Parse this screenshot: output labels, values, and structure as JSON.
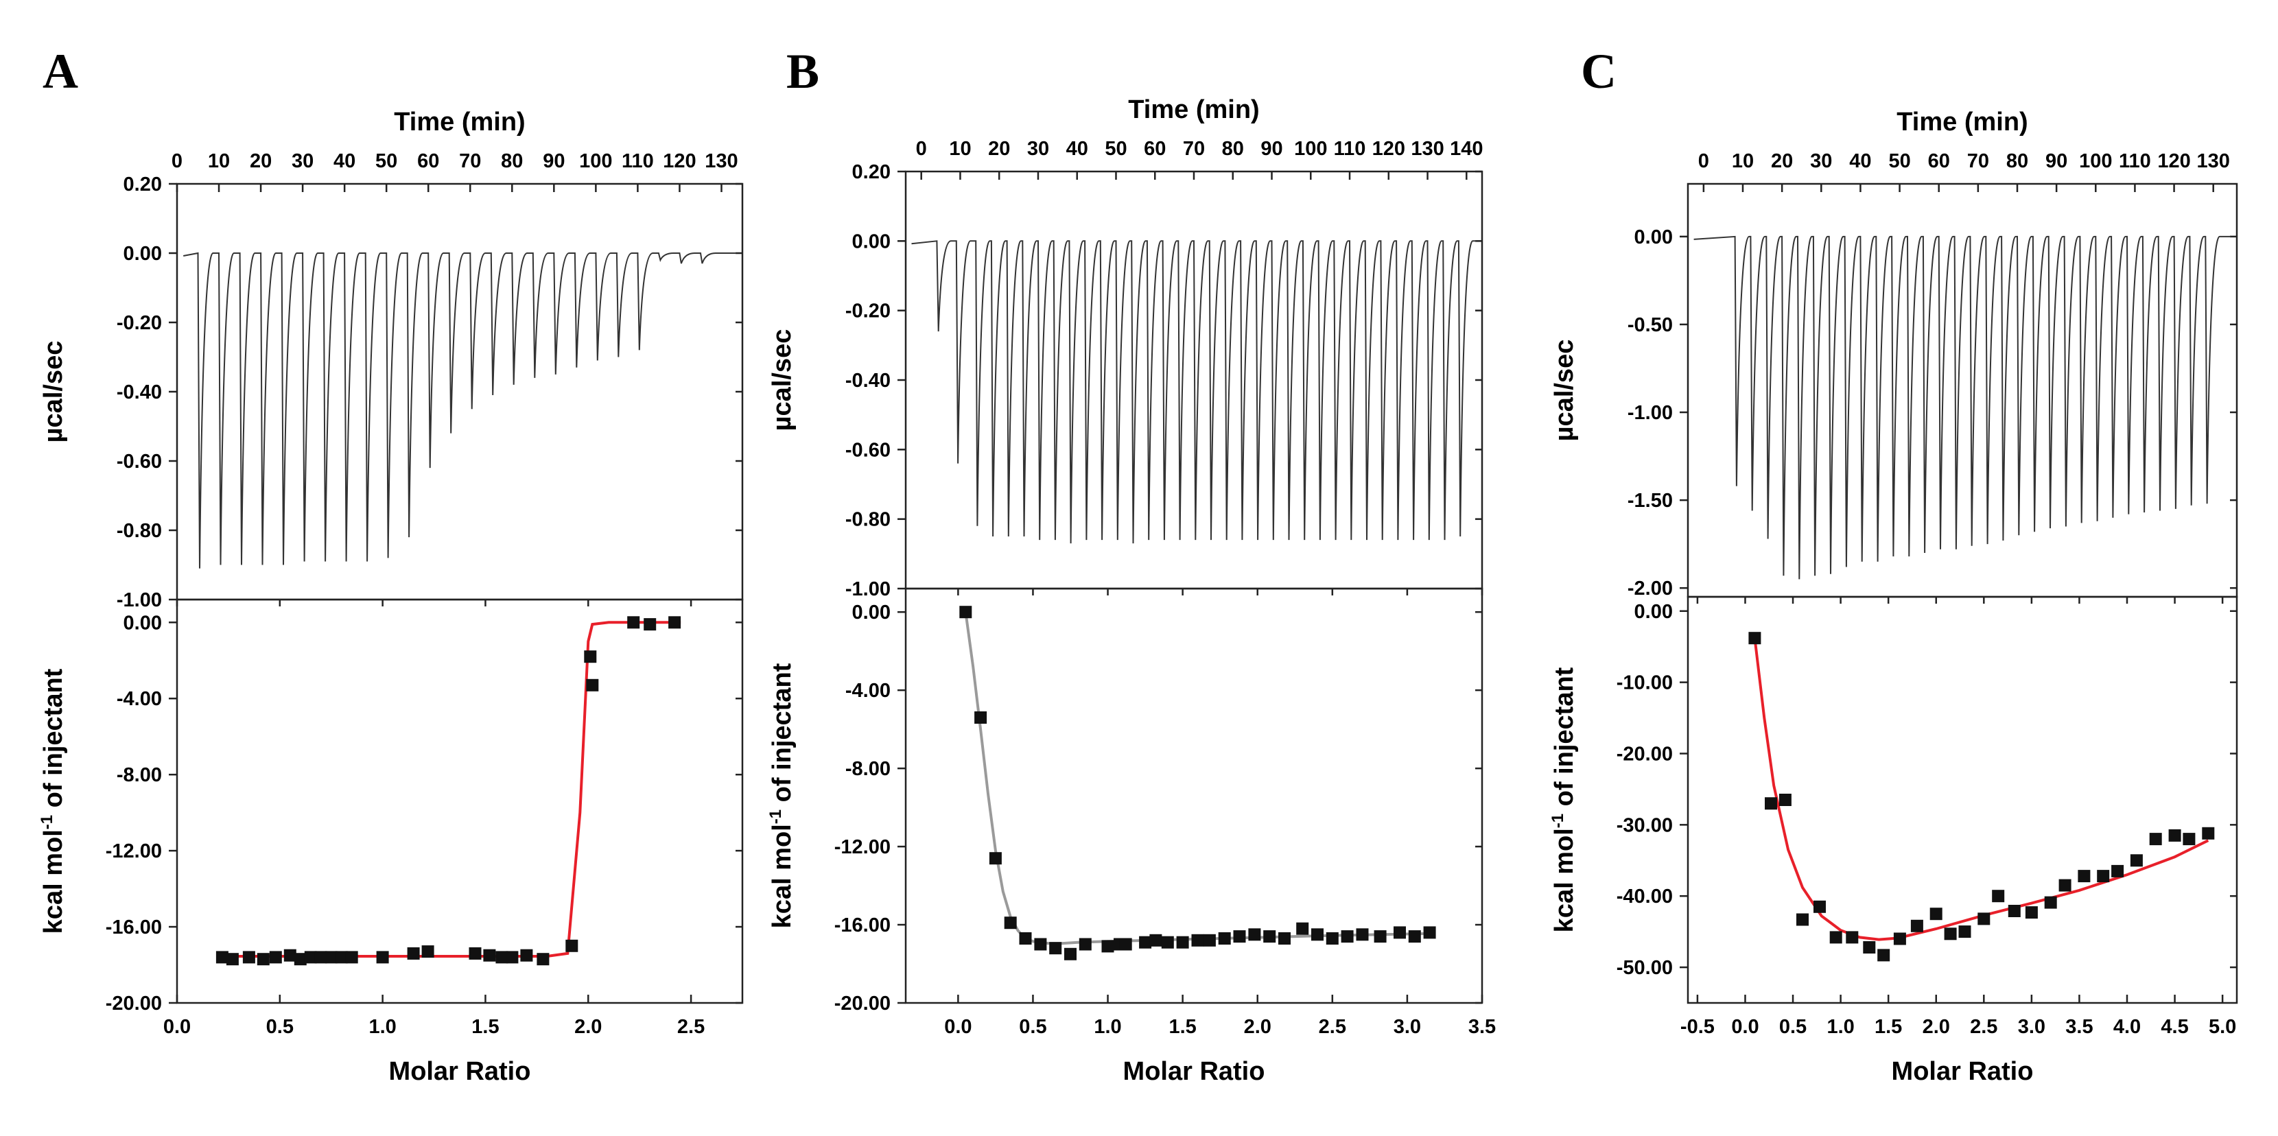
{
  "colors": {
    "fit_red": "#e8202a",
    "fit_gray": "#9a9a9a",
    "marker": "#111111",
    "axis": "#222222",
    "trace": "#333333"
  },
  "chart_data": [
    {
      "type": "scatter",
      "panel": "A",
      "top_plot": {
        "title": "Time (min)",
        "ylabel": "µcal/sec",
        "xlim": [
          0,
          135
        ],
        "ylim": [
          -1.0,
          0.2
        ],
        "x_tick_labels": [
          "0",
          "10",
          "20",
          "30",
          "40",
          "50",
          "60",
          "70",
          "80",
          "90",
          "100",
          "110",
          "120",
          "130"
        ],
        "y_tick_labels": [
          "0.20",
          "0.00",
          "-0.20",
          "-0.40",
          "-0.60",
          "-0.80",
          "-1.00"
        ],
        "injection_times": [
          5,
          10,
          15,
          20,
          25,
          30,
          35,
          40,
          45,
          50,
          55,
          60,
          65,
          70,
          75,
          80,
          85,
          90,
          95,
          100,
          105,
          110,
          115,
          120,
          125
        ],
        "peak_depths": [
          -0.91,
          -0.9,
          -0.9,
          -0.9,
          -0.9,
          -0.89,
          -0.89,
          -0.89,
          -0.89,
          -0.88,
          -0.82,
          -0.62,
          -0.52,
          -0.45,
          -0.41,
          -0.38,
          -0.36,
          -0.35,
          -0.33,
          -0.31,
          -0.3,
          -0.28,
          -0.02,
          -0.03,
          -0.03
        ]
      },
      "bottom_plot": {
        "xlabel": "Molar Ratio",
        "ylabel": "kcal mol⁻¹ of injectant",
        "ylabel_parts": [
          "kcal mol",
          "-1",
          " of injectant"
        ],
        "xlim": [
          0,
          2.75
        ],
        "ylim": [
          -20,
          1.2
        ],
        "x_tick_labels": [
          "0.0",
          "0.5",
          "1.0",
          "1.5",
          "2.0",
          "2.5"
        ],
        "y_tick_labels": [
          "0.00",
          "-4.00",
          "-8.00",
          "-12.00",
          "-16.00",
          "-20.00"
        ],
        "x": [
          0.22,
          0.27,
          0.35,
          0.42,
          0.48,
          0.55,
          0.6,
          0.65,
          0.7,
          0.75,
          0.8,
          0.85,
          1.0,
          1.15,
          1.22,
          1.45,
          1.52,
          1.58,
          1.63,
          1.7,
          1.78,
          1.92,
          2.01,
          2.02,
          2.22,
          2.3,
          2.42
        ],
        "y": [
          -17.6,
          -17.7,
          -17.6,
          -17.7,
          -17.6,
          -17.5,
          -17.7,
          -17.6,
          -17.6,
          -17.6,
          -17.6,
          -17.6,
          -17.6,
          -17.4,
          -17.3,
          -17.4,
          -17.5,
          -17.6,
          -17.6,
          -17.5,
          -17.7,
          -17.0,
          -1.8,
          -3.3,
          0.0,
          -0.1,
          0.0
        ],
        "fit_x": [
          0.2,
          0.5,
          1.0,
          1.5,
          1.8,
          1.9,
          1.96,
          2.0,
          2.02,
          2.1,
          2.2,
          2.45
        ],
        "fit_y": [
          -17.55,
          -17.55,
          -17.55,
          -17.55,
          -17.55,
          -17.4,
          -10.0,
          -1.0,
          -0.1,
          0.0,
          0.0,
          0.0
        ],
        "fit_color": "#e8202a"
      }
    },
    {
      "type": "scatter",
      "panel": "B",
      "top_plot": {
        "title": "Time (min)",
        "ylabel": "µcal/sec",
        "xlim": [
          -4,
          144
        ],
        "ylim": [
          -1.0,
          0.2
        ],
        "x_tick_labels": [
          "0",
          "10",
          "20",
          "30",
          "40",
          "50",
          "60",
          "70",
          "80",
          "90",
          "100",
          "110",
          "120",
          "130",
          "140"
        ],
        "y_tick_labels": [
          "0.20",
          "0.00",
          "-0.20",
          "-0.40",
          "-0.60",
          "-0.80",
          "-1.00"
        ],
        "injection_times": [
          4,
          9,
          14,
          18,
          22,
          26,
          30,
          34,
          38,
          42,
          46,
          50,
          54,
          58,
          62,
          66,
          70,
          74,
          78,
          82,
          86,
          90,
          94,
          98,
          102,
          106,
          110,
          114,
          118,
          122,
          126,
          130,
          134,
          138
        ],
        "peak_depths": [
          -0.26,
          -0.64,
          -0.82,
          -0.85,
          -0.85,
          -0.85,
          -0.86,
          -0.86,
          -0.87,
          -0.86,
          -0.86,
          -0.86,
          -0.87,
          -0.86,
          -0.86,
          -0.86,
          -0.86,
          -0.86,
          -0.86,
          -0.86,
          -0.86,
          -0.86,
          -0.86,
          -0.86,
          -0.86,
          -0.86,
          -0.86,
          -0.86,
          -0.86,
          -0.86,
          -0.86,
          -0.86,
          -0.86,
          -0.85
        ]
      },
      "bottom_plot": {
        "xlabel": "Molar Ratio",
        "ylabel": "kcal mol⁻¹ of injectant",
        "ylabel_parts": [
          "kcal mol",
          "-1",
          " of injectant"
        ],
        "xlim": [
          -0.35,
          3.5
        ],
        "ylim": [
          -20,
          1.2
        ],
        "x_tick_labels": [
          "0.0",
          "0.5",
          "1.0",
          "1.5",
          "2.0",
          "2.5",
          "3.0",
          "3.5"
        ],
        "y_tick_labels": [
          "0.00",
          "-4.00",
          "-8.00",
          "-12.00",
          "-16.00",
          "-20.00"
        ],
        "x": [
          0.05,
          0.15,
          0.25,
          0.35,
          0.45,
          0.55,
          0.65,
          0.75,
          0.85,
          1.0,
          1.08,
          1.12,
          1.25,
          1.32,
          1.4,
          1.5,
          1.6,
          1.68,
          1.78,
          1.88,
          1.98,
          2.08,
          2.18,
          2.3,
          2.4,
          2.5,
          2.6,
          2.7,
          2.82,
          2.95,
          3.05,
          3.15
        ],
        "y": [
          0.0,
          -5.4,
          -12.6,
          -15.9,
          -16.7,
          -17.0,
          -17.2,
          -17.5,
          -17.0,
          -17.1,
          -17.0,
          -17.0,
          -16.9,
          -16.8,
          -16.9,
          -16.9,
          -16.8,
          -16.8,
          -16.7,
          -16.6,
          -16.5,
          -16.6,
          -16.7,
          -16.2,
          -16.5,
          -16.7,
          -16.6,
          -16.5,
          -16.6,
          -16.4,
          -16.6,
          -16.4
        ],
        "fit_x": [
          0.05,
          0.1,
          0.15,
          0.2,
          0.25,
          0.3,
          0.35,
          0.4,
          0.45,
          0.5,
          0.6,
          0.7,
          0.8,
          1.0,
          1.5,
          2.0,
          2.5,
          3.15
        ],
        "fit_y": [
          0.0,
          -2.8,
          -6.0,
          -9.3,
          -12.2,
          -14.3,
          -15.6,
          -16.3,
          -16.7,
          -16.85,
          -16.95,
          -16.95,
          -16.9,
          -16.85,
          -16.75,
          -16.65,
          -16.55,
          -16.45
        ],
        "fit_color": "#9a9a9a"
      }
    },
    {
      "type": "scatter",
      "panel": "C",
      "top_plot": {
        "title": "Time (min)",
        "ylabel": "µcal/sec",
        "xlim": [
          -4,
          136
        ],
        "ylim": [
          -2.05,
          0.3
        ],
        "x_tick_labels": [
          "0",
          "10",
          "20",
          "30",
          "40",
          "50",
          "60",
          "70",
          "80",
          "90",
          "100",
          "110",
          "120",
          "130"
        ],
        "y_tick_labels": [
          "0.00",
          "-0.50",
          "-1.00",
          "-1.50",
          "-2.00"
        ],
        "injection_times": [
          8,
          12,
          16,
          20,
          24,
          28,
          32,
          36,
          40,
          44,
          48,
          52,
          56,
          60,
          64,
          68,
          72,
          76,
          80,
          84,
          88,
          92,
          96,
          100,
          104,
          108,
          112,
          116,
          120,
          124,
          128
        ],
        "peak_depths": [
          -1.42,
          -1.56,
          -1.72,
          -1.93,
          -1.95,
          -1.93,
          -1.92,
          -1.88,
          -1.85,
          -1.85,
          -1.82,
          -1.82,
          -1.8,
          -1.78,
          -1.78,
          -1.76,
          -1.75,
          -1.73,
          -1.7,
          -1.68,
          -1.66,
          -1.65,
          -1.63,
          -1.62,
          -1.6,
          -1.58,
          -1.57,
          -1.56,
          -1.55,
          -1.53,
          -1.52
        ]
      },
      "bottom_plot": {
        "xlabel": "Molar Ratio",
        "ylabel": "kcal mol⁻¹ of injectant",
        "ylabel_parts": [
          "kcal mol",
          "-1",
          " of injectant"
        ],
        "xlim": [
          -0.6,
          5.15
        ],
        "ylim": [
          -55,
          2
        ],
        "x_tick_labels": [
          "-0.5",
          "0.0",
          "0.5",
          "1.0",
          "1.5",
          "2.0",
          "2.5",
          "3.0",
          "3.5",
          "4.0",
          "4.5",
          "5.0"
        ],
        "y_tick_labels": [
          "0.00",
          "-10.00",
          "-20.00",
          "-30.00",
          "-40.00",
          "-50.00"
        ],
        "x": [
          0.1,
          0.27,
          0.42,
          0.6,
          0.78,
          0.95,
          1.12,
          1.3,
          1.45,
          1.62,
          1.8,
          2.0,
          2.15,
          2.3,
          2.5,
          2.65,
          2.82,
          3.0,
          3.2,
          3.35,
          3.55,
          3.75,
          3.9,
          4.1,
          4.3,
          4.5,
          4.65,
          4.85
        ],
        "y": [
          -3.8,
          -27.0,
          -26.5,
          -43.3,
          -41.5,
          -45.8,
          -45.8,
          -47.2,
          -48.3,
          -46.0,
          -44.2,
          -42.5,
          -45.3,
          -45.0,
          -43.2,
          -40.0,
          -42.1,
          -42.3,
          -40.9,
          -38.5,
          -37.2,
          -37.2,
          -36.5,
          -35.0,
          -32.0,
          -31.5,
          -32.0,
          -31.2
        ],
        "fit_x": [
          0.1,
          0.2,
          0.3,
          0.45,
          0.6,
          0.8,
          1.0,
          1.2,
          1.4,
          1.6,
          2.0,
          2.5,
          3.0,
          3.5,
          4.0,
          4.5,
          4.85
        ],
        "fit_y": [
          -3.8,
          -15.0,
          -24.5,
          -33.5,
          -38.8,
          -42.8,
          -44.8,
          -45.8,
          -46.1,
          -45.9,
          -44.6,
          -42.7,
          -41.0,
          -39.2,
          -37.0,
          -34.5,
          -32.2
        ],
        "fit_color": "#e8202a"
      }
    }
  ]
}
